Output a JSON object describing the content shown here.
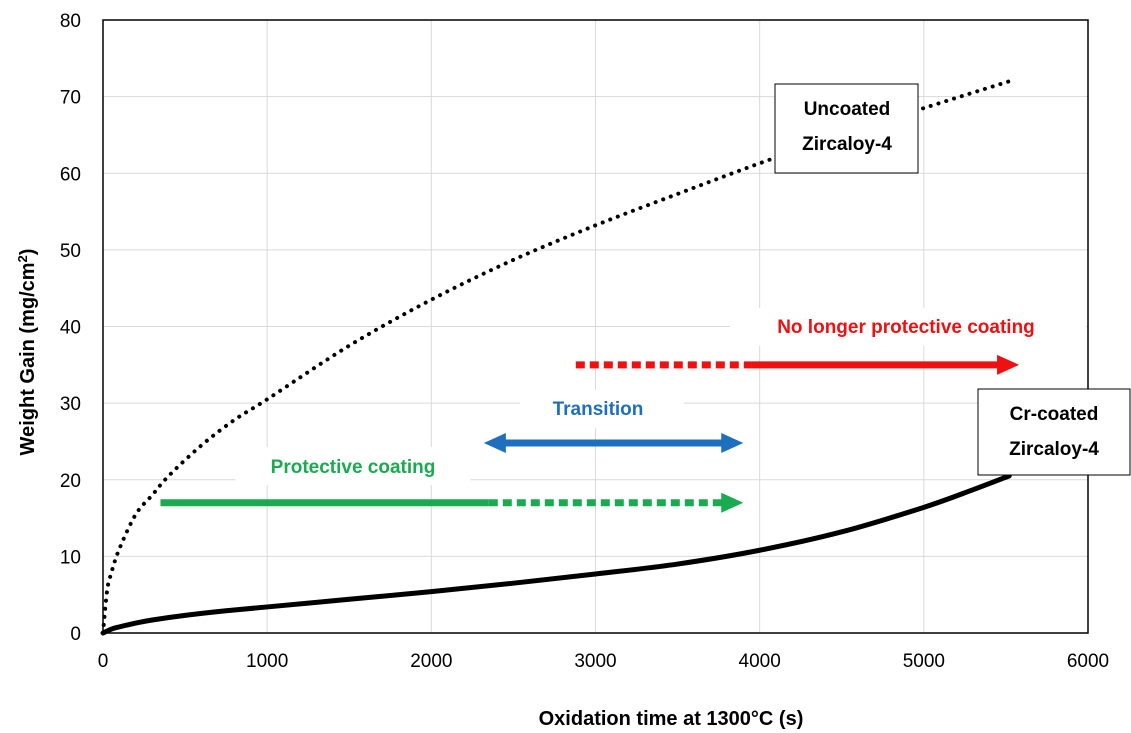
{
  "chart_data": {
    "type": "line",
    "xlabel": "Oxidation time at 1300°C (s)",
    "ylabel_main": "Weight Gain (mg/cm",
    "ylabel_sup": "2",
    "ylabel_end": ")",
    "xlim": [
      0,
      6000
    ],
    "ylim": [
      0,
      80
    ],
    "x_ticks": [
      0,
      1000,
      2000,
      3000,
      4000,
      5000,
      6000
    ],
    "y_ticks": [
      0,
      10,
      20,
      30,
      40,
      50,
      60,
      70,
      80
    ],
    "grid": true,
    "series": [
      {
        "name": "Uncoated Zircaloy-4",
        "style": "dotted",
        "color": "#000000",
        "x": [
          0,
          25,
          50,
          100,
          200,
          300,
          400,
          600,
          800,
          1000,
          1500,
          2000,
          2500,
          3000,
          3500,
          4000,
          4500,
          5000,
          5520
        ],
        "y": [
          0,
          5.5,
          7.8,
          11,
          15.5,
          18,
          20.5,
          24.5,
          27.8,
          30.5,
          37.5,
          43.5,
          48.7,
          53.2,
          57.3,
          61.3,
          65,
          68.5,
          72
        ]
      },
      {
        "name": "Cr-coated Zircaloy-4",
        "style": "solid",
        "color": "#000000",
        "x": [
          0,
          50,
          100,
          200,
          300,
          500,
          750,
          1000,
          1500,
          2000,
          2500,
          3000,
          3500,
          4000,
          4500,
          5000,
          5300,
          5520
        ],
        "y": [
          0,
          0.5,
          0.8,
          1.3,
          1.7,
          2.3,
          2.9,
          3.4,
          4.4,
          5.4,
          6.5,
          7.7,
          9.0,
          10.8,
          13.2,
          16.4,
          18.7,
          20.5
        ]
      }
    ],
    "annotations": {
      "uncoated_label_line1": "Uncoated",
      "uncoated_label_line2": "Zircaloy-4",
      "coated_label_line1": "Cr-coated",
      "coated_label_line2": "Zircaloy-4",
      "protective": "Protective coating",
      "transition": "Transition",
      "no_longer": "No longer protective coating"
    },
    "colors": {
      "protective": "#1aaa50",
      "transition": "#1f6fbf",
      "no_longer": "#ee1111"
    },
    "arrows": [
      {
        "name": "protective-arrow",
        "color": "protective",
        "y": 17,
        "solid_x": [
          350,
          2350
        ],
        "dashed_x": [
          2350,
          3900
        ]
      },
      {
        "name": "transition-arrow",
        "color": "transition",
        "y": 24.8,
        "double": true,
        "solid_x": [
          2320,
          3900
        ]
      },
      {
        "name": "no-longer-arrow",
        "color": "no_longer",
        "y": 35,
        "dashed_x": [
          2880,
          3950
        ],
        "solid_x": [
          3950,
          5580
        ]
      }
    ]
  }
}
